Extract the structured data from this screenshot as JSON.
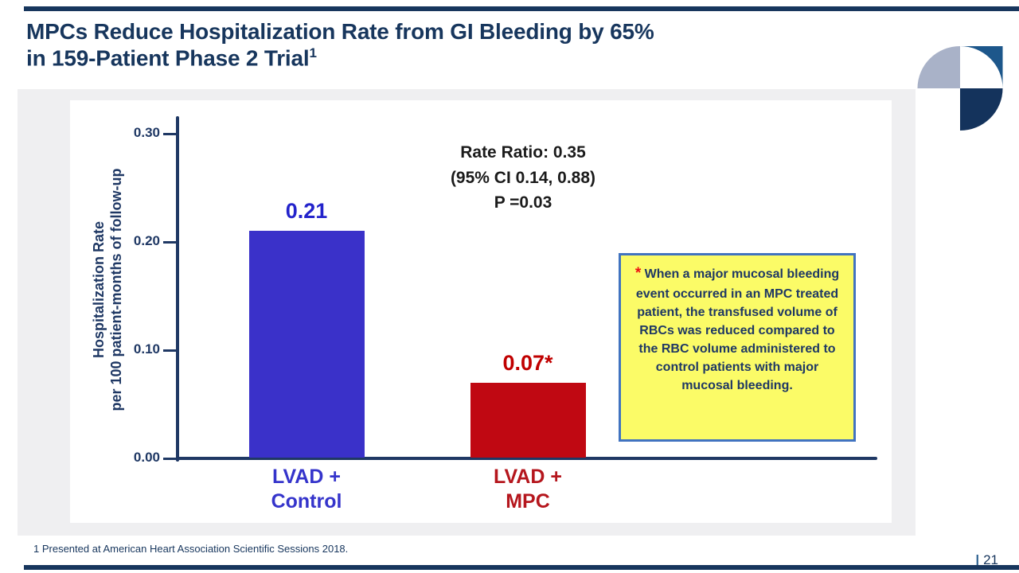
{
  "slide": {
    "title_line1": "MPCs Reduce Hospitalization Rate from GI Bleeding by 65%",
    "title_line2": "in 159-Patient Phase 2 Trial",
    "title_superscript": "1",
    "footnote": "1 Presented at American Heart Association Scientific Sessions 2018.",
    "page_separator": "|",
    "page_number": "21"
  },
  "colors": {
    "title_navy": "#17365d",
    "axis_navy": "#1f3864",
    "bar_blue": "#3a31c9",
    "bar_red": "#c00812",
    "value_label_blue": "#2323cb",
    "value_label_red": "#c00000",
    "category_blue": "#3534cb",
    "category_red": "#b5161d",
    "note_background": "#fbfb67",
    "note_border": "#4173c0",
    "asterisk_red": "#ee1111",
    "logo_light": "#a9b2c8",
    "logo_mid_blue": "#1d578b",
    "logo_dark_navy": "#14335c",
    "slide_body_gray": "#efeff1"
  },
  "chart_data": {
    "type": "bar",
    "title": "",
    "xlabel": "",
    "ylabel_line1": "Hospitalization Rate",
    "ylabel_line2": "per 100 patient-months of follow-up",
    "ylim": [
      0,
      0.32
    ],
    "grid": false,
    "yticks": [
      {
        "value": 0.3,
        "label": "0.30"
      },
      {
        "value": 0.2,
        "label": "0.20"
      },
      {
        "value": 0.1,
        "label": "0.10"
      },
      {
        "value": 0.0,
        "label": "0.00"
      }
    ],
    "categories": [
      {
        "line1": "LVAD +",
        "line2": "Control"
      },
      {
        "line1": "LVAD +",
        "line2": "MPC"
      }
    ],
    "values": [
      0.21,
      0.07
    ],
    "bar_value_labels": [
      "0.21",
      "0.07*"
    ],
    "bar_colors": [
      "#3a31c9",
      "#c00812"
    ],
    "value_label_colors": [
      "#2323cb",
      "#c00000"
    ],
    "category_label_colors": [
      "#3534cb",
      "#b5161d"
    ],
    "annotation_lines": [
      "Rate Ratio: 0.35",
      "(95% CI 0.14, 0.88)",
      "P =0.03"
    ],
    "note_box": {
      "asterisk": "*",
      "text": "When a major mucosal bleeding event occurred in an MPC treated patient, the transfused volume of RBCs was reduced compared to the RBC volume administered to control patients with major mucosal bleeding."
    }
  }
}
